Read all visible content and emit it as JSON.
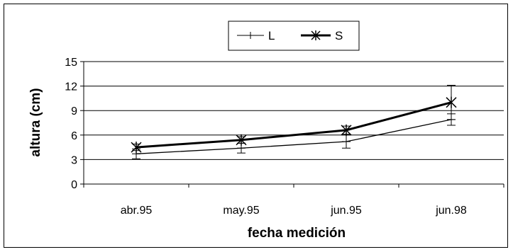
{
  "chart_data": {
    "type": "line",
    "categories": [
      "abr.95",
      "may.95",
      "jun.95",
      "jun.98"
    ],
    "series": [
      {
        "name": "L",
        "values": [
          3.7,
          4.4,
          5.2,
          7.9
        ],
        "error": [
          0.6,
          0.6,
          0.8,
          0.7
        ],
        "color": "#000000",
        "marker": "plus"
      },
      {
        "name": "S",
        "values": [
          4.5,
          5.4,
          6.6,
          10.0
        ],
        "error": [
          0.4,
          0.4,
          0.5,
          2.1
        ],
        "color": "#000000",
        "marker": "asterisk"
      }
    ],
    "xlabel": "fecha medición",
    "ylabel": "altura (cm)",
    "ylim": [
      0,
      15
    ],
    "yticks": [
      "0",
      "3",
      "6",
      "9",
      "12",
      "15"
    ],
    "grid": true,
    "legend": "top-center"
  }
}
